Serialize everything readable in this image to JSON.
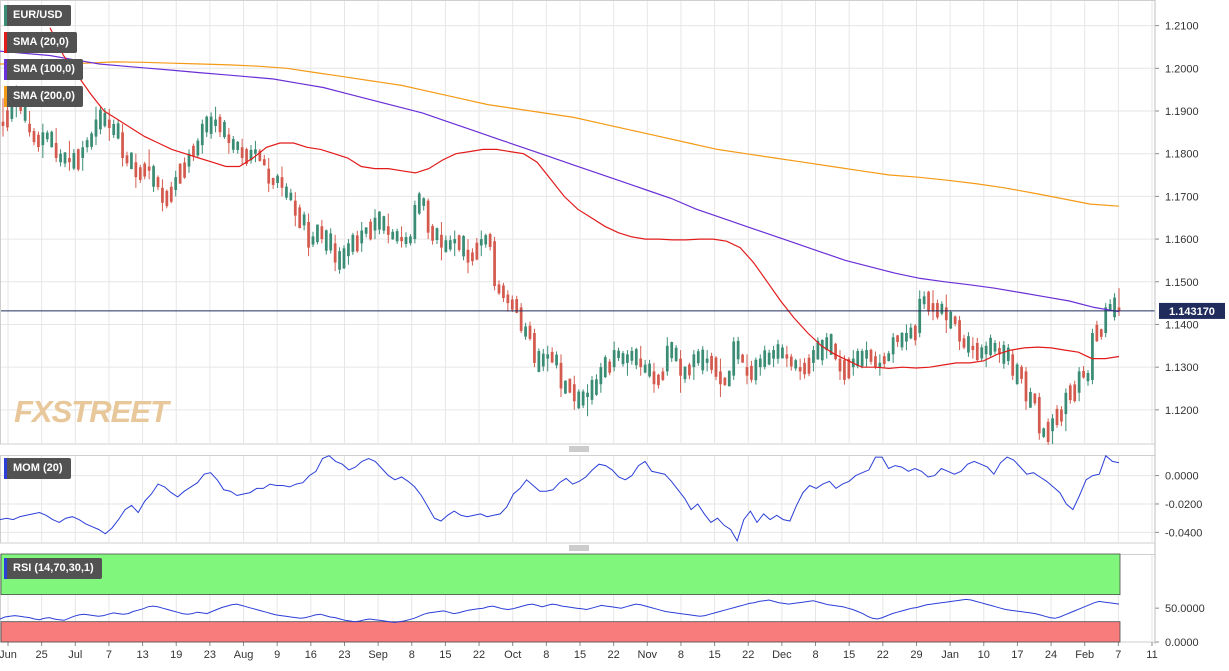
{
  "instrument": "EUR/USD",
  "logo": "FXSTREET",
  "indicators": {
    "sma20": {
      "label": "SMA (20,0)",
      "color": "#e21b1b"
    },
    "sma100": {
      "label": "SMA (100,0)",
      "color": "#6a2fd6"
    },
    "sma200": {
      "label": "SMA (200,0)",
      "color": "#f59a16"
    },
    "mom": {
      "label": "MOM (20)",
      "color": "#2b3fd8"
    },
    "rsi": {
      "label": "RSI (14,70,30,1)",
      "color": "#2b3fd8"
    }
  },
  "colors": {
    "up": "#3a8c74",
    "down": "#d45a4e",
    "rsi_overbought_zone": "#80f77c",
    "rsi_oversold_zone": "#f87c7c",
    "current_line": "#1f2c5c"
  },
  "current_price": {
    "value": 1.14317,
    "label": "1.143170"
  },
  "chart_data": [
    {
      "type": "candlestick",
      "title": "EUR/USD",
      "y_axis": {
        "min": 1.112,
        "max": 1.216,
        "ticks": [
          "1.2100",
          "1.2000",
          "1.1900",
          "1.1800",
          "1.1700",
          "1.1600",
          "1.1500",
          "1.1400",
          "1.1300",
          "1.1200"
        ]
      },
      "x_axis": {
        "ticks": [
          "Jun",
          "25",
          "Jul",
          "7",
          "13",
          "19",
          "23",
          "Aug",
          "9",
          "16",
          "23",
          "Sep",
          "8",
          "15",
          "22",
          "Oct",
          "8",
          "15",
          "22",
          "Nov",
          "8",
          "15",
          "22",
          "Dec",
          "8",
          "15",
          "22",
          "29",
          "Jan",
          "10",
          "17",
          "24",
          "Feb",
          "7",
          "11"
        ]
      },
      "anchors": [
        {
          "o": 1.1875,
          "h": 1.193,
          "l": 1.184,
          "c": 1.1865
        },
        {
          "o": 1.1915,
          "h": 1.196,
          "l": 1.1885,
          "c": 1.194
        },
        {
          "o": 1.187,
          "h": 1.19,
          "l": 1.184,
          "c": 1.185
        },
        {
          "o": 1.182,
          "h": 1.187,
          "l": 1.179,
          "c": 1.185
        },
        {
          "o": 1.1825,
          "h": 1.186,
          "l": 1.178,
          "c": 1.179
        },
        {
          "o": 1.179,
          "h": 1.183,
          "l": 1.176,
          "c": 1.178
        },
        {
          "o": 1.179,
          "h": 1.183,
          "l": 1.176,
          "c": 1.1815
        },
        {
          "o": 1.184,
          "h": 1.191,
          "l": 1.182,
          "c": 1.188
        },
        {
          "o": 1.188,
          "h": 1.1905,
          "l": 1.183,
          "c": 1.186
        },
        {
          "o": 1.185,
          "h": 1.187,
          "l": 1.177,
          "c": 1.179
        },
        {
          "o": 1.178,
          "h": 1.18,
          "l": 1.172,
          "c": 1.1745
        },
        {
          "o": 1.177,
          "h": 1.181,
          "l": 1.174,
          "c": 1.176
        },
        {
          "o": 1.172,
          "h": 1.174,
          "l": 1.1665,
          "c": 1.1685
        },
        {
          "o": 1.1715,
          "h": 1.176,
          "l": 1.17,
          "c": 1.1745
        },
        {
          "o": 1.177,
          "h": 1.181,
          "l": 1.1755,
          "c": 1.18
        },
        {
          "o": 1.182,
          "h": 1.188,
          "l": 1.18,
          "c": 1.187
        },
        {
          "o": 1.1865,
          "h": 1.191,
          "l": 1.185,
          "c": 1.188
        },
        {
          "o": 1.1845,
          "h": 1.186,
          "l": 1.18,
          "c": 1.1825
        },
        {
          "o": 1.1815,
          "h": 1.1835,
          "l": 1.1775,
          "c": 1.179
        },
        {
          "o": 1.18,
          "h": 1.183,
          "l": 1.178,
          "c": 1.181
        },
        {
          "o": 1.1765,
          "h": 1.179,
          "l": 1.171,
          "c": 1.173
        },
        {
          "o": 1.1745,
          "h": 1.177,
          "l": 1.17,
          "c": 1.172
        },
        {
          "o": 1.169,
          "h": 1.171,
          "l": 1.163,
          "c": 1.1655
        },
        {
          "o": 1.164,
          "h": 1.166,
          "l": 1.156,
          "c": 1.158
        },
        {
          "o": 1.163,
          "h": 1.1645,
          "l": 1.159,
          "c": 1.16
        },
        {
          "o": 1.159,
          "h": 1.161,
          "l": 1.1525,
          "c": 1.1545
        },
        {
          "o": 1.156,
          "h": 1.16,
          "l": 1.154,
          "c": 1.159
        },
        {
          "o": 1.159,
          "h": 1.164,
          "l": 1.157,
          "c": 1.162
        },
        {
          "o": 1.162,
          "h": 1.167,
          "l": 1.16,
          "c": 1.165
        },
        {
          "o": 1.163,
          "h": 1.166,
          "l": 1.159,
          "c": 1.161
        },
        {
          "o": 1.1605,
          "h": 1.163,
          "l": 1.158,
          "c": 1.1595
        },
        {
          "o": 1.16,
          "h": 1.169,
          "l": 1.159,
          "c": 1.168
        },
        {
          "o": 1.169,
          "h": 1.1695,
          "l": 1.16,
          "c": 1.1615
        },
        {
          "o": 1.161,
          "h": 1.164,
          "l": 1.155,
          "c": 1.158
        },
        {
          "o": 1.159,
          "h": 1.162,
          "l": 1.156,
          "c": 1.16
        },
        {
          "o": 1.1575,
          "h": 1.16,
          "l": 1.152,
          "c": 1.1545
        },
        {
          "o": 1.1585,
          "h": 1.162,
          "l": 1.156,
          "c": 1.16
        },
        {
          "o": 1.1595,
          "h": 1.1605,
          "l": 1.148,
          "c": 1.149
        },
        {
          "o": 1.147,
          "h": 1.148,
          "l": 1.143,
          "c": 1.145
        },
        {
          "o": 1.144,
          "h": 1.145,
          "l": 1.138,
          "c": 1.1385
        },
        {
          "o": 1.138,
          "h": 1.139,
          "l": 1.13,
          "c": 1.131
        },
        {
          "o": 1.132,
          "h": 1.135,
          "l": 1.129,
          "c": 1.133
        },
        {
          "o": 1.131,
          "h": 1.133,
          "l": 1.123,
          "c": 1.125
        },
        {
          "o": 1.126,
          "h": 1.128,
          "l": 1.12,
          "c": 1.122
        },
        {
          "o": 1.123,
          "h": 1.126,
          "l": 1.1185,
          "c": 1.124
        },
        {
          "o": 1.126,
          "h": 1.131,
          "l": 1.124,
          "c": 1.13
        },
        {
          "o": 1.13,
          "h": 1.136,
          "l": 1.129,
          "c": 1.134
        },
        {
          "o": 1.131,
          "h": 1.134,
          "l": 1.128,
          "c": 1.133
        },
        {
          "o": 1.132,
          "h": 1.135,
          "l": 1.128,
          "c": 1.13
        },
        {
          "o": 1.129,
          "h": 1.131,
          "l": 1.124,
          "c": 1.126
        },
        {
          "o": 1.129,
          "h": 1.137,
          "l": 1.128,
          "c": 1.135
        },
        {
          "o": 1.132,
          "h": 1.134,
          "l": 1.124,
          "c": 1.128
        },
        {
          "o": 1.13,
          "h": 1.134,
          "l": 1.127,
          "c": 1.133
        },
        {
          "o": 1.131,
          "h": 1.134,
          "l": 1.129,
          "c": 1.132
        },
        {
          "o": 1.129,
          "h": 1.132,
          "l": 1.123,
          "c": 1.126
        },
        {
          "o": 1.128,
          "h": 1.137,
          "l": 1.127,
          "c": 1.136
        },
        {
          "o": 1.13,
          "h": 1.133,
          "l": 1.126,
          "c": 1.128
        },
        {
          "o": 1.13,
          "h": 1.133,
          "l": 1.128,
          "c": 1.132
        },
        {
          "o": 1.132,
          "h": 1.135,
          "l": 1.13,
          "c": 1.134
        },
        {
          "o": 1.133,
          "h": 1.135,
          "l": 1.13,
          "c": 1.132
        },
        {
          "o": 1.13,
          "h": 1.132,
          "l": 1.127,
          "c": 1.129
        },
        {
          "o": 1.131,
          "h": 1.135,
          "l": 1.129,
          "c": 1.134
        },
        {
          "o": 1.134,
          "h": 1.138,
          "l": 1.132,
          "c": 1.137
        },
        {
          "o": 1.132,
          "h": 1.134,
          "l": 1.127,
          "c": 1.129
        },
        {
          "o": 1.13,
          "h": 1.134,
          "l": 1.128,
          "c": 1.132
        },
        {
          "o": 1.132,
          "h": 1.136,
          "l": 1.13,
          "c": 1.134
        },
        {
          "o": 1.13,
          "h": 1.133,
          "l": 1.128,
          "c": 1.131
        },
        {
          "o": 1.133,
          "h": 1.138,
          "l": 1.131,
          "c": 1.137
        },
        {
          "o": 1.136,
          "h": 1.14,
          "l": 1.134,
          "c": 1.138
        },
        {
          "o": 1.138,
          "h": 1.148,
          "l": 1.137,
          "c": 1.146
        },
        {
          "o": 1.145,
          "h": 1.148,
          "l": 1.141,
          "c": 1.143
        },
        {
          "o": 1.144,
          "h": 1.147,
          "l": 1.138,
          "c": 1.141
        },
        {
          "o": 1.141,
          "h": 1.142,
          "l": 1.134,
          "c": 1.136
        },
        {
          "o": 1.135,
          "h": 1.137,
          "l": 1.132,
          "c": 1.134
        },
        {
          "o": 1.133,
          "h": 1.136,
          "l": 1.13,
          "c": 1.135
        },
        {
          "o": 1.1345,
          "h": 1.136,
          "l": 1.131,
          "c": 1.133
        },
        {
          "o": 1.133,
          "h": 1.134,
          "l": 1.127,
          "c": 1.128
        },
        {
          "o": 1.129,
          "h": 1.13,
          "l": 1.12,
          "c": 1.122
        },
        {
          "o": 1.123,
          "h": 1.124,
          "l": 1.113,
          "c": 1.1145
        },
        {
          "o": 1.115,
          "h": 1.119,
          "l": 1.112,
          "c": 1.118
        },
        {
          "o": 1.119,
          "h": 1.125,
          "l": 1.115,
          "c": 1.124
        },
        {
          "o": 1.124,
          "h": 1.13,
          "l": 1.122,
          "c": 1.129
        },
        {
          "o": 1.127,
          "h": 1.139,
          "l": 1.126,
          "c": 1.138
        },
        {
          "o": 1.138,
          "h": 1.145,
          "l": 1.137,
          "c": 1.144
        },
        {
          "o": 1.144,
          "h": 1.1485,
          "l": 1.142,
          "c": 1.1432
        }
      ],
      "sma20": [
        1.2095,
        1.203,
        1.1985,
        1.194,
        1.19,
        1.188,
        1.186,
        1.184,
        1.1825,
        1.181,
        1.18,
        1.179,
        1.178,
        1.177,
        1.177,
        1.179,
        1.1815,
        1.1825,
        1.1825,
        1.1815,
        1.181,
        1.18,
        1.179,
        1.177,
        1.1765,
        1.1765,
        1.176,
        1.1755,
        1.1765,
        1.1785,
        1.18,
        1.1805,
        1.181,
        1.181,
        1.1805,
        1.18,
        1.178,
        1.174,
        1.17,
        1.167,
        1.165,
        1.163,
        1.1615,
        1.1605,
        1.16,
        1.16,
        1.1598,
        1.1598,
        1.16,
        1.16,
        1.1595,
        1.158,
        1.1545,
        1.15,
        1.1455,
        1.1415,
        1.138,
        1.135,
        1.133,
        1.1315,
        1.13,
        1.13,
        1.1297,
        1.13,
        1.1298,
        1.13,
        1.1305,
        1.131,
        1.131,
        1.1315,
        1.133,
        1.134,
        1.1345,
        1.1347,
        1.1345,
        1.134,
        1.1335,
        1.132,
        1.132,
        1.1325
      ],
      "sma100": [
        1.204,
        1.2035,
        1.203,
        1.202,
        1.201,
        1.2005,
        1.2,
        1.1995,
        1.199,
        1.1985,
        1.198,
        1.1975,
        1.1965,
        1.1955,
        1.194,
        1.1925,
        1.191,
        1.1895,
        1.1875,
        1.1855,
        1.1835,
        1.1815,
        1.1795,
        1.1775,
        1.1755,
        1.1735,
        1.1715,
        1.1695,
        1.167,
        1.165,
        1.163,
        1.161,
        1.159,
        1.157,
        1.155,
        1.1535,
        1.152,
        1.1508,
        1.15,
        1.1493,
        1.1485,
        1.1475,
        1.1465,
        1.1455,
        1.144,
        1.143
      ],
      "sma200": [
        1.201,
        1.201,
        1.201,
        1.2012,
        1.2015,
        1.2014,
        1.2012,
        1.201,
        1.2008,
        1.2005,
        1.2,
        1.199,
        1.198,
        1.197,
        1.196,
        1.1945,
        1.193,
        1.1915,
        1.1905,
        1.1895,
        1.1885,
        1.187,
        1.1855,
        1.184,
        1.1825,
        1.181,
        1.18,
        1.179,
        1.178,
        1.177,
        1.176,
        1.175,
        1.1745,
        1.1738,
        1.173,
        1.172,
        1.1708,
        1.1695,
        1.1682,
        1.1677
      ]
    },
    {
      "type": "line",
      "title": "MOM (20)",
      "y_axis": {
        "min": -0.0475,
        "max": 0.0145,
        "ticks": [
          "0.0000",
          "-0.0200",
          "-0.0400"
        ]
      },
      "values": [
        -0.031,
        -0.03,
        -0.031,
        -0.029,
        -0.028,
        -0.027,
        -0.026,
        -0.028,
        -0.031,
        -0.033,
        -0.03,
        -0.029,
        -0.031,
        -0.034,
        -0.036,
        -0.038,
        -0.041,
        -0.037,
        -0.031,
        -0.024,
        -0.021,
        -0.026,
        -0.018,
        -0.013,
        -0.006,
        -0.008,
        -0.012,
        -0.015,
        -0.011,
        -0.008,
        -0.005,
        0.001,
        0.002,
        -0.003,
        -0.01,
        -0.011,
        -0.014,
        -0.013,
        -0.012,
        -0.009,
        -0.009,
        -0.006,
        -0.007,
        -0.007,
        -0.008,
        -0.006,
        -0.005,
        0.0,
        0.003,
        0.012,
        0.014,
        0.01,
        0.008,
        0.004,
        0.006,
        0.01,
        0.012,
        0.01,
        0.005,
        0.0,
        -0.003,
        -0.001,
        -0.004,
        -0.008,
        -0.014,
        -0.022,
        -0.03,
        -0.032,
        -0.028,
        -0.025,
        -0.028,
        -0.029,
        -0.028,
        -0.027,
        -0.029,
        -0.028,
        -0.027,
        -0.022,
        -0.013,
        -0.009,
        -0.003,
        -0.007,
        -0.011,
        -0.011,
        -0.01,
        -0.005,
        -0.002,
        -0.006,
        -0.004,
        -0.001,
        0.004,
        0.008,
        0.007,
        0.004,
        -0.001,
        -0.003,
        0.0,
        0.007,
        0.01,
        0.003,
        0.002,
        0.001,
        -0.004,
        -0.01,
        -0.016,
        -0.024,
        -0.02,
        -0.027,
        -0.033,
        -0.03,
        -0.035,
        -0.038,
        -0.046,
        -0.031,
        -0.025,
        -0.033,
        -0.027,
        -0.031,
        -0.028,
        -0.031,
        -0.032,
        -0.021,
        -0.012,
        -0.007,
        -0.009,
        -0.006,
        -0.004,
        -0.009,
        -0.006,
        -0.004,
        0.0,
        0.002,
        0.004,
        0.013,
        0.013,
        0.005,
        0.007,
        0.006,
        0.003,
        0.005,
        0.003,
        -0.001,
        0.0,
        0.005,
        0.003,
        0.001,
        0.003,
        0.008,
        0.01,
        0.008,
        0.006,
        0.001,
        0.009,
        0.013,
        0.011,
        0.006,
        0.001,
        0.002,
        -0.001,
        -0.004,
        -0.008,
        -0.012,
        -0.02,
        -0.024,
        -0.014,
        -0.003,
        0.0,
        0.001,
        0.014,
        0.01,
        0.009
      ]
    },
    {
      "type": "line",
      "title": "RSI (14,70,30,1)",
      "y_axis": {
        "min": 0,
        "max": 130,
        "ticks": [
          "50.0000",
          "0.0000"
        ]
      },
      "bands": {
        "overbought": 70,
        "oversold": 30
      },
      "values": [
        34,
        37,
        38,
        39,
        38,
        37,
        36,
        34,
        33,
        35,
        36,
        34,
        33,
        32,
        35,
        38,
        40,
        41,
        40,
        39,
        38,
        39,
        41,
        43,
        42,
        41,
        42,
        45,
        47,
        49,
        52,
        53,
        52,
        50,
        48,
        46,
        44,
        42,
        41,
        42,
        44,
        43,
        42,
        45,
        48,
        51,
        53,
        55,
        56,
        54,
        52,
        50,
        48,
        46,
        44,
        42,
        40,
        39,
        38,
        37,
        36,
        35,
        36,
        38,
        40,
        41,
        39,
        37,
        36,
        34,
        32,
        31,
        30,
        31,
        33,
        34,
        33,
        32,
        31,
        30,
        29,
        30,
        31,
        33,
        35,
        38,
        41,
        43,
        44,
        45,
        46,
        44,
        42,
        43,
        45,
        47,
        48,
        49,
        50,
        52,
        53,
        51,
        49,
        48,
        49,
        51,
        53,
        55,
        56,
        54,
        52,
        54,
        56,
        55,
        53,
        52,
        51,
        50,
        49,
        48,
        50,
        52,
        54,
        53,
        52,
        51,
        50,
        52,
        54,
        56,
        55,
        53,
        51,
        49,
        47,
        45,
        44,
        43,
        42,
        41,
        40,
        39,
        38,
        39,
        41,
        43,
        45,
        47,
        49,
        51,
        53,
        55,
        57,
        58,
        60,
        61,
        62,
        60,
        58,
        57,
        56,
        57,
        58,
        59,
        60,
        61,
        59,
        57,
        55,
        54,
        53,
        52,
        50,
        48,
        45,
        42,
        38,
        35,
        34,
        36,
        39,
        42,
        44,
        46,
        48,
        50,
        51,
        53,
        55,
        56,
        57,
        58,
        59,
        60,
        61,
        62,
        63,
        62,
        60,
        58,
        56,
        54,
        52,
        50,
        48,
        47,
        46,
        45,
        44,
        43,
        42,
        40,
        38,
        36,
        35,
        37,
        40,
        43,
        46,
        49,
        52,
        55,
        58,
        60,
        59,
        58,
        57,
        56
      ]
    }
  ]
}
